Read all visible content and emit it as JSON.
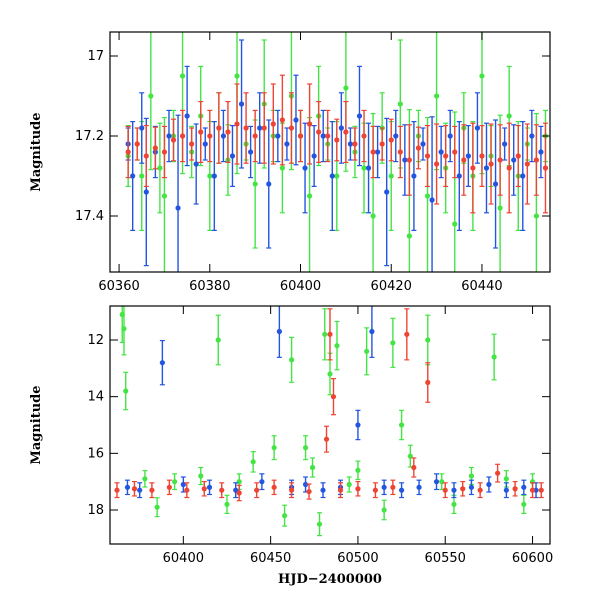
{
  "chart_data": [
    {
      "type": "scatter",
      "panel": "top",
      "title": "",
      "xlabel": "",
      "ylabel": "Magnitude",
      "xlim": [
        60358,
        60455
      ],
      "ylim": [
        17.54,
        16.94
      ],
      "y_inverted": true,
      "grid": false,
      "legend": "none",
      "x_ticks": [
        60360,
        60380,
        60400,
        60420,
        60440
      ],
      "x_tick_labels": [
        "60360",
        "60380",
        "60400",
        "60420",
        "60440"
      ],
      "y_ticks": [
        17,
        17.2,
        17.4
      ],
      "y_tick_labels": [
        "17",
        "17.2",
        "17.4"
      ],
      "series": [
        {
          "color": "#44e444",
          "x": [
            60362,
            60364,
            60365,
            60367,
            60369,
            60370,
            60372,
            60374,
            60376,
            60378,
            60380,
            60382,
            60384,
            60386,
            60388,
            60390,
            60392,
            60394,
            60396,
            60398,
            60400,
            60402,
            60404,
            60406,
            60408,
            60410,
            60412,
            60414,
            60416,
            60418,
            60420,
            60422,
            60424,
            60426,
            60428,
            60430,
            60432,
            60434,
            60436,
            60438,
            60440,
            60442,
            60444,
            60446,
            60448,
            60450,
            60452,
            60454
          ],
          "y": [
            17.25,
            17.22,
            17.3,
            17.1,
            17.28,
            17.35,
            17.2,
            17.05,
            17.24,
            17.15,
            17.3,
            17.18,
            17.26,
            17.05,
            17.22,
            17.32,
            17.12,
            17.2,
            17.28,
            17.1,
            17.2,
            17.35,
            17.15,
            17.22,
            17.3,
            17.08,
            17.24,
            17.28,
            17.4,
            17.18,
            17.3,
            17.12,
            17.45,
            17.2,
            17.35,
            17.1,
            17.28,
            17.42,
            17.18,
            17.3,
            17.05,
            17.25,
            17.38,
            17.15,
            17.3,
            17.22,
            17.4,
            17.2
          ]
        },
        {
          "color": "#2255e0",
          "x": [
            60362,
            60363,
            60365,
            60366,
            60368,
            60371,
            60373,
            60375,
            60377,
            60379,
            60381,
            60383,
            60385,
            60387,
            60389,
            60391,
            60393,
            60395,
            60397,
            60399,
            60401,
            60403,
            60405,
            60407,
            60409,
            60411,
            60413,
            60415,
            60417,
            60419,
            60421,
            60423,
            60425,
            60427,
            60429,
            60431,
            60433,
            60435,
            60437,
            60439,
            60441,
            60443,
            60445,
            60447,
            60449,
            60451,
            60453
          ],
          "y": [
            17.22,
            17.3,
            17.18,
            17.34,
            17.24,
            17.2,
            17.38,
            17.15,
            17.27,
            17.22,
            17.3,
            17.2,
            17.25,
            17.12,
            17.24,
            17.18,
            17.32,
            17.2,
            17.22,
            17.16,
            17.28,
            17.25,
            17.2,
            17.3,
            17.18,
            17.22,
            17.15,
            17.28,
            17.24,
            17.34,
            17.2,
            17.26,
            17.3,
            17.22,
            17.36,
            17.24,
            17.2,
            17.3,
            17.25,
            17.18,
            17.28,
            17.32,
            17.22,
            17.26,
            17.3,
            17.2,
            17.24
          ]
        },
        {
          "color": "#ee4433",
          "x": [
            60362,
            60364,
            60366,
            60368,
            60370,
            60372,
            60374,
            60376,
            60378,
            60380,
            60382,
            60384,
            60386,
            60388,
            60390,
            60392,
            60394,
            60396,
            60398,
            60400,
            60402,
            60404,
            60406,
            60408,
            60410,
            60412,
            60414,
            60416,
            60418,
            60420,
            60422,
            60424,
            60426,
            60428,
            60430,
            60432,
            60434,
            60436,
            60438,
            60440,
            60442,
            60444,
            60446,
            60448,
            60450,
            60452,
            60454
          ],
          "y": [
            17.24,
            17.22,
            17.25,
            17.23,
            17.24,
            17.21,
            17.2,
            17.22,
            17.19,
            17.2,
            17.18,
            17.19,
            17.17,
            17.18,
            17.2,
            17.18,
            17.17,
            17.16,
            17.18,
            17.2,
            17.17,
            17.19,
            17.2,
            17.21,
            17.19,
            17.22,
            17.2,
            17.24,
            17.22,
            17.21,
            17.24,
            17.26,
            17.23,
            17.25,
            17.27,
            17.25,
            17.24,
            17.26,
            17.28,
            17.25,
            17.27,
            17.26,
            17.28,
            17.25,
            17.27,
            17.26,
            17.28
          ]
        }
      ]
    },
    {
      "type": "scatter",
      "panel": "bottom",
      "title": "",
      "xlabel": "HJD−2400000",
      "ylabel": "Magnitude",
      "xlim": [
        60358,
        60610
      ],
      "ylim": [
        19.2,
        10.8
      ],
      "y_inverted": true,
      "grid": false,
      "legend": "none",
      "x_ticks": [
        60400,
        60450,
        60500,
        60550,
        60600
      ],
      "x_tick_labels": [
        "60400",
        "60450",
        "60500",
        "60550",
        "60600"
      ],
      "y_ticks": [
        12,
        14,
        16,
        18
      ],
      "y_tick_labels": [
        "12",
        "14",
        "16",
        "18"
      ],
      "series": [
        {
          "color": "#44e444",
          "x": [
            60365,
            60366,
            60367,
            60378,
            60385,
            60395,
            60410,
            60420,
            60425,
            60432,
            60440,
            60452,
            60458,
            60462,
            60470,
            60474,
            60478,
            60481,
            60484,
            60488,
            60495,
            60500,
            60505,
            60515,
            60520,
            60525,
            60530,
            60540,
            60548,
            60555,
            60565,
            60578,
            60585,
            60595,
            60600
          ],
          "y": [
            11.1,
            11.6,
            13.8,
            16.9,
            17.9,
            17.0,
            16.8,
            12.0,
            17.8,
            17.0,
            16.3,
            15.8,
            18.2,
            12.7,
            15.8,
            16.5,
            18.5,
            11.8,
            13.2,
            12.2,
            17.1,
            16.6,
            12.4,
            18.0,
            12.1,
            15.0,
            16.1,
            12.0,
            17.0,
            17.8,
            16.8,
            12.6,
            16.9,
            17.8,
            17.0
          ]
        },
        {
          "color": "#2255e0",
          "x": [
            60368,
            60375,
            60388,
            60400,
            60415,
            60430,
            60445,
            60455,
            60462,
            60470,
            60480,
            60490,
            60500,
            60508,
            60515,
            60525,
            60535,
            60545,
            60555,
            60565,
            60575,
            60585,
            60595,
            60602
          ],
          "y": [
            17.2,
            17.3,
            12.8,
            17.1,
            17.2,
            17.3,
            17.0,
            11.7,
            17.2,
            17.1,
            17.3,
            17.2,
            15.0,
            11.7,
            17.2,
            17.3,
            17.2,
            17.0,
            17.3,
            17.2,
            17.1,
            17.3,
            17.2,
            17.3
          ]
        },
        {
          "color": "#ee4433",
          "x": [
            60362,
            60372,
            60382,
            60392,
            60402,
            60412,
            60422,
            60432,
            60442,
            60452,
            60462,
            60472,
            60482,
            60484,
            60486,
            60490,
            60500,
            60510,
            60520,
            60528,
            60532,
            60540,
            60550,
            60560,
            60570,
            60580,
            60590,
            60600,
            60605
          ],
          "y": [
            17.3,
            17.25,
            17.3,
            17.2,
            17.3,
            17.25,
            17.3,
            17.4,
            17.3,
            17.2,
            17.3,
            17.35,
            15.5,
            11.8,
            14.0,
            17.3,
            17.25,
            17.3,
            17.2,
            11.8,
            16.5,
            13.5,
            17.3,
            17.25,
            17.3,
            16.7,
            17.25,
            17.3,
            17.3
          ]
        }
      ]
    }
  ]
}
